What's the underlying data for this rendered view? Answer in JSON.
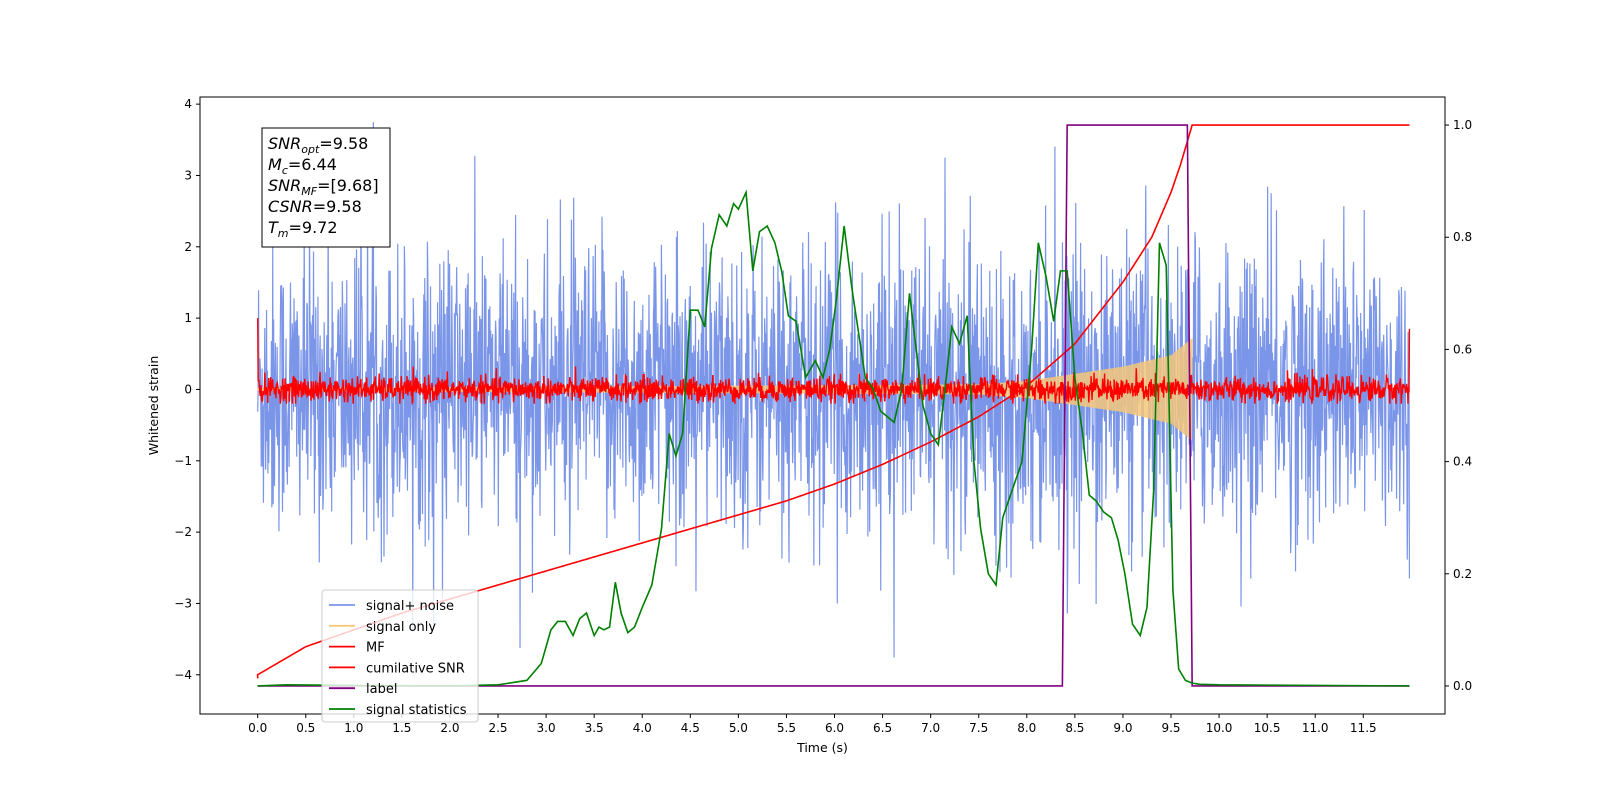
{
  "chart_data": {
    "type": "line",
    "title": "",
    "xlabel": "Time (s)",
    "ylabel_left": "Whitened strain",
    "ylabel_right": "",
    "xlim": [
      -0.6,
      12.35
    ],
    "ylim_left": [
      -4.55,
      4.1
    ],
    "ylim_right": [
      -0.05,
      1.05
    ],
    "grid": false,
    "legend_position": "lower-left",
    "x_ticks": [
      0.0,
      0.5,
      1.0,
      1.5,
      2.0,
      2.5,
      3.0,
      3.5,
      4.0,
      4.5,
      5.0,
      5.5,
      6.0,
      6.5,
      7.0,
      7.5,
      8.0,
      8.5,
      9.0,
      9.5,
      10.0,
      10.5,
      11.0,
      11.5
    ],
    "x_tick_labels": [
      "0.0",
      "0.5",
      "1.0",
      "1.5",
      "2.0",
      "2.5",
      "3.0",
      "3.5",
      "4.0",
      "4.5",
      "5.0",
      "5.5",
      "6.0",
      "6.5",
      "7.0",
      "7.5",
      "8.0",
      "8.5",
      "9.0",
      "9.5",
      "10.0",
      "10.5",
      "11.0",
      "11.5"
    ],
    "y_left_ticks": [
      -4,
      -3,
      -2,
      -1,
      0,
      1,
      2,
      3,
      4
    ],
    "y_left_tick_labels": [
      "−4",
      "−3",
      "−2",
      "−1",
      "0",
      "1",
      "2",
      "3",
      "4"
    ],
    "y_right_ticks": [
      0.0,
      0.2,
      0.4,
      0.6,
      0.8,
      1.0
    ],
    "y_right_tick_labels": [
      "0.0",
      "0.2",
      "0.4",
      "0.6",
      "0.8",
      "1.0"
    ],
    "annotation": {
      "lines": [
        {
          "sym": "SNR",
          "sub": "opt",
          "val": "=9.58"
        },
        {
          "sym": "M",
          "sub": "c",
          "val": "=6.44"
        },
        {
          "sym": "SNR",
          "sub": "MF",
          "val": "=[9.68]"
        },
        {
          "sym": "CSNR",
          "sub": "",
          "val": "=9.58"
        },
        {
          "sym": "T",
          "sub": "m",
          "val": "=9.72"
        }
      ]
    },
    "series": [
      {
        "name": "signal+ noise",
        "color": "#7b96e8",
        "axis": "left",
        "kind": "noise",
        "x_range": [
          0.0,
          11.98
        ],
        "amplitude_std": 1.0,
        "typical_range": [
          -2.5,
          2.5
        ]
      },
      {
        "name": "signal only",
        "color": "#f5c77a",
        "axis": "left",
        "kind": "chirp",
        "x_range": [
          0.0,
          9.72
        ],
        "envelope": [
          [
            0.0,
            0.02
          ],
          [
            7.5,
            0.07
          ],
          [
            8.0,
            0.12
          ],
          [
            8.5,
            0.22
          ],
          [
            9.0,
            0.32
          ],
          [
            9.5,
            0.48
          ],
          [
            9.72,
            0.72
          ]
        ]
      },
      {
        "name": "MF",
        "color": "#ff0000",
        "axis": "left",
        "kind": "mf_noise",
        "x_range": [
          0.0,
          11.98
        ],
        "typical_range": [
          -0.15,
          0.15
        ],
        "edge_spikes": [
          [
            0.0,
            1.0
          ],
          [
            11.98,
            0.85
          ]
        ]
      },
      {
        "name": "cumilative SNR",
        "color": "#ff0000",
        "axis": "right",
        "x": [
          0.0,
          0.5,
          1.0,
          1.5,
          2.0,
          2.5,
          3.0,
          3.5,
          4.0,
          4.5,
          5.0,
          5.5,
          6.0,
          6.5,
          7.0,
          7.5,
          8.0,
          8.5,
          9.0,
          9.3,
          9.5,
          9.6,
          9.72,
          10.0,
          11.98
        ],
        "y": [
          0.02,
          0.07,
          0.1,
          0.13,
          0.155,
          0.18,
          0.205,
          0.23,
          0.255,
          0.28,
          0.305,
          0.33,
          0.36,
          0.395,
          0.435,
          0.48,
          0.535,
          0.61,
          0.72,
          0.8,
          0.88,
          0.93,
          1.0,
          1.0,
          1.0
        ]
      },
      {
        "name": "label",
        "color": "#800080",
        "axis": "right",
        "x": [
          0.0,
          8.37,
          8.42,
          9.67,
          9.72,
          11.98
        ],
        "y": [
          0.0,
          0.0,
          1.0,
          1.0,
          0.0,
          0.0
        ]
      },
      {
        "name": "signal statistics",
        "color": "#008000",
        "axis": "right",
        "x": [
          0.0,
          0.3,
          1.0,
          2.0,
          2.5,
          2.8,
          2.95,
          3.05,
          3.12,
          3.2,
          3.28,
          3.35,
          3.42,
          3.5,
          3.55,
          3.6,
          3.66,
          3.72,
          3.78,
          3.85,
          3.92,
          4.0,
          4.1,
          4.2,
          4.28,
          4.35,
          4.42,
          4.5,
          4.58,
          4.65,
          4.72,
          4.8,
          4.88,
          4.95,
          5.0,
          5.08,
          5.15,
          5.22,
          5.3,
          5.38,
          5.45,
          5.52,
          5.6,
          5.7,
          5.8,
          5.88,
          5.95,
          6.02,
          6.1,
          6.18,
          6.25,
          6.32,
          6.4,
          6.48,
          6.55,
          6.62,
          6.7,
          6.78,
          6.85,
          6.92,
          7.0,
          7.08,
          7.15,
          7.22,
          7.3,
          7.38,
          7.45,
          7.52,
          7.6,
          7.68,
          7.75,
          7.85,
          7.95,
          8.05,
          8.12,
          8.2,
          8.28,
          8.35,
          8.42,
          8.5,
          8.58,
          8.65,
          8.72,
          8.8,
          8.88,
          8.95,
          9.02,
          9.1,
          9.18,
          9.25,
          9.32,
          9.38,
          9.45,
          9.52,
          9.58,
          9.65,
          9.72,
          9.8,
          10.0,
          11.98
        ],
        "y": [
          0.0,
          0.002,
          0.001,
          0.0,
          0.002,
          0.01,
          0.04,
          0.1,
          0.115,
          0.115,
          0.09,
          0.12,
          0.13,
          0.09,
          0.105,
          0.1,
          0.105,
          0.185,
          0.13,
          0.095,
          0.105,
          0.14,
          0.18,
          0.28,
          0.45,
          0.41,
          0.45,
          0.67,
          0.67,
          0.64,
          0.78,
          0.84,
          0.82,
          0.86,
          0.85,
          0.88,
          0.74,
          0.81,
          0.82,
          0.79,
          0.74,
          0.66,
          0.65,
          0.55,
          0.58,
          0.55,
          0.6,
          0.69,
          0.82,
          0.71,
          0.63,
          0.55,
          0.53,
          0.49,
          0.48,
          0.47,
          0.53,
          0.7,
          0.6,
          0.5,
          0.45,
          0.43,
          0.53,
          0.64,
          0.61,
          0.66,
          0.4,
          0.28,
          0.2,
          0.18,
          0.3,
          0.35,
          0.4,
          0.6,
          0.79,
          0.73,
          0.65,
          0.74,
          0.74,
          0.55,
          0.45,
          0.34,
          0.33,
          0.31,
          0.3,
          0.26,
          0.2,
          0.11,
          0.09,
          0.14,
          0.35,
          0.79,
          0.75,
          0.17,
          0.03,
          0.01,
          0.005,
          0.003,
          0.002,
          0.0
        ]
      }
    ]
  }
}
